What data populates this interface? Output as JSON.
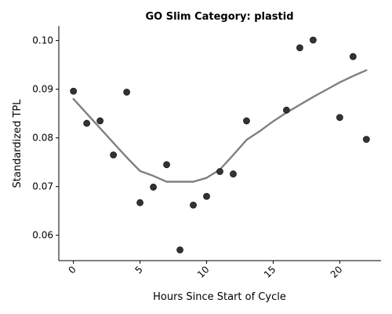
{
  "chart_data": {
    "type": "scatter",
    "title": "GO Slim Category: plastid",
    "xlabel": "Hours Since Start of Cycle",
    "ylabel": "Standardized TPL",
    "xlim": [
      -1.1,
      23.1
    ],
    "ylim": [
      0.0548,
      0.103
    ],
    "xticks": [
      0,
      5,
      10,
      15,
      20
    ],
    "yticks": [
      0.06,
      0.07,
      0.08,
      0.09,
      0.1
    ],
    "ytick_labels": [
      "0.06",
      "0.07",
      "0.08",
      "0.09",
      "0.10"
    ],
    "grid": false,
    "legend": "none",
    "points": [
      {
        "x": 0,
        "y": 0.0896
      },
      {
        "x": 1,
        "y": 0.083
      },
      {
        "x": 2,
        "y": 0.0835
      },
      {
        "x": 3,
        "y": 0.0765
      },
      {
        "x": 4,
        "y": 0.0894
      },
      {
        "x": 5,
        "y": 0.0667
      },
      {
        "x": 6,
        "y": 0.0699
      },
      {
        "x": 7,
        "y": 0.0745
      },
      {
        "x": 8,
        "y": 0.057
      },
      {
        "x": 9,
        "y": 0.0662
      },
      {
        "x": 10,
        "y": 0.068
      },
      {
        "x": 11,
        "y": 0.0731
      },
      {
        "x": 12,
        "y": 0.0726
      },
      {
        "x": 13,
        "y": 0.0835
      },
      {
        "x": 16,
        "y": 0.0857
      },
      {
        "x": 17,
        "y": 0.0985
      },
      {
        "x": 18,
        "y": 0.1001
      },
      {
        "x": 20,
        "y": 0.0842
      },
      {
        "x": 21,
        "y": 0.0967
      },
      {
        "x": 22,
        "y": 0.0797
      }
    ],
    "trend_line": [
      {
        "x": 0,
        "y": 0.088
      },
      {
        "x": 1,
        "y": 0.085
      },
      {
        "x": 2,
        "y": 0.082
      },
      {
        "x": 3,
        "y": 0.079
      },
      {
        "x": 4,
        "y": 0.076
      },
      {
        "x": 5,
        "y": 0.0732
      },
      {
        "x": 6,
        "y": 0.0722
      },
      {
        "x": 7,
        "y": 0.071
      },
      {
        "x": 8,
        "y": 0.071
      },
      {
        "x": 9,
        "y": 0.071
      },
      {
        "x": 10,
        "y": 0.0718
      },
      {
        "x": 11,
        "y": 0.0735
      },
      {
        "x": 12,
        "y": 0.0765
      },
      {
        "x": 13,
        "y": 0.0796
      },
      {
        "x": 14,
        "y": 0.0814
      },
      {
        "x": 15,
        "y": 0.0834
      },
      {
        "x": 16,
        "y": 0.0852
      },
      {
        "x": 17,
        "y": 0.0868
      },
      {
        "x": 18,
        "y": 0.0884
      },
      {
        "x": 19,
        "y": 0.0899
      },
      {
        "x": 20,
        "y": 0.0914
      },
      {
        "x": 21,
        "y": 0.0927
      },
      {
        "x": 22,
        "y": 0.0939
      }
    ],
    "colors": {
      "points": "#333333",
      "trend_line": "#808080"
    }
  }
}
